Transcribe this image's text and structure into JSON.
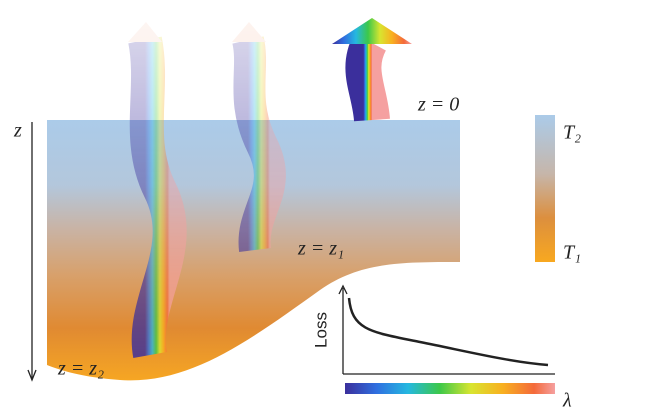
{
  "diagram": {
    "depth_axis_label": "z",
    "surface_label": "z = 0",
    "level1_label": "z = z₁",
    "level2_label": "z = z₂",
    "colorbar": {
      "top_label": "T₂",
      "bottom_label": "T₁"
    },
    "inset": {
      "y_label": "Loss",
      "x_label": "λ"
    }
  }
}
